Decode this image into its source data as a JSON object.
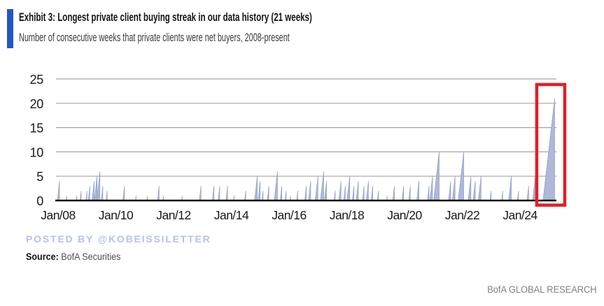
{
  "header": {
    "title": "Exhibit 3: Longest private client buying streak in our data history (21 weeks)",
    "subtitle": "Number of consecutive weeks that private clients were net buyers, 2008-present",
    "accent_color": "#2257c8"
  },
  "watermark": {
    "text": "POSTED BY @KOBEISSILETTER",
    "color": "#b5c1ef"
  },
  "source": {
    "label": "Source:",
    "text": " BofA Securities"
  },
  "footer": {
    "text": "BofA GLOBAL RESEARCH"
  },
  "chart_data": {
    "type": "bar",
    "title": "Longest private client buying streak in our data history (21 weeks)",
    "xlabel": "",
    "ylabel": "",
    "ylim": [
      0,
      25
    ],
    "y_ticks": [
      0,
      5,
      10,
      15,
      20,
      25
    ],
    "x_ticks": [
      "Jan/08",
      "Jan/10",
      "Jan/12",
      "Jan/14",
      "Jan/16",
      "Jan/18",
      "Jan/20",
      "Jan/22",
      "Jan/24"
    ],
    "x_tick_years": [
      2008,
      2010,
      2012,
      2014,
      2016,
      2018,
      2020,
      2022,
      2024
    ],
    "x_range_years": [
      2007.93,
      2025.27
    ],
    "grid": true,
    "legend": "none",
    "bar_color": "#aeb8d8",
    "bar_edge_color": "#8b97c2",
    "grid_color": "#a5a5a5",
    "axis_color": "#111111",
    "tick_label_color": "#1a1a1a",
    "max_streak_weeks": 21,
    "streaks": [
      {
        "year": 2008.05,
        "weeks": 4
      },
      {
        "year": 2008.3,
        "weeks": 1
      },
      {
        "year": 2008.65,
        "weeks": 1
      },
      {
        "year": 2008.8,
        "weeks": 2
      },
      {
        "year": 2009.0,
        "weeks": 2
      },
      {
        "year": 2009.1,
        "weeks": 3
      },
      {
        "year": 2009.25,
        "weeks": 4
      },
      {
        "year": 2009.35,
        "weeks": 5
      },
      {
        "year": 2009.45,
        "weeks": 6
      },
      {
        "year": 2009.55,
        "weeks": 3
      },
      {
        "year": 2009.7,
        "weeks": 2
      },
      {
        "year": 2010.3,
        "weeks": 3
      },
      {
        "year": 2010.7,
        "weeks": 1
      },
      {
        "year": 2011.1,
        "weeks": 1
      },
      {
        "year": 2011.5,
        "weeks": 3
      },
      {
        "year": 2011.65,
        "weeks": 1
      },
      {
        "year": 2012.3,
        "weeks": 1
      },
      {
        "year": 2012.95,
        "weeks": 3
      },
      {
        "year": 2013.4,
        "weeks": 3
      },
      {
        "year": 2013.6,
        "weeks": 3
      },
      {
        "year": 2013.87,
        "weeks": 3
      },
      {
        "year": 2014.1,
        "weeks": 1
      },
      {
        "year": 2014.5,
        "weeks": 2
      },
      {
        "year": 2014.9,
        "weeks": 5
      },
      {
        "year": 2015.0,
        "weeks": 4
      },
      {
        "year": 2015.1,
        "weeks": 2
      },
      {
        "year": 2015.3,
        "weeks": 3
      },
      {
        "year": 2015.6,
        "weeks": 6
      },
      {
        "year": 2015.75,
        "weeks": 3
      },
      {
        "year": 2015.9,
        "weeks": 2
      },
      {
        "year": 2016.05,
        "weeks": 1
      },
      {
        "year": 2016.3,
        "weeks": 2
      },
      {
        "year": 2016.6,
        "weeks": 3
      },
      {
        "year": 2016.75,
        "weeks": 4
      },
      {
        "year": 2017.0,
        "weeks": 5
      },
      {
        "year": 2017.2,
        "weeks": 6
      },
      {
        "year": 2017.3,
        "weeks": 4
      },
      {
        "year": 2017.6,
        "weeks": 2
      },
      {
        "year": 2017.8,
        "weeks": 4
      },
      {
        "year": 2017.95,
        "weeks": 3
      },
      {
        "year": 2018.1,
        "weeks": 5
      },
      {
        "year": 2018.25,
        "weeks": 3
      },
      {
        "year": 2018.4,
        "weeks": 4
      },
      {
        "year": 2018.6,
        "weeks": 3
      },
      {
        "year": 2018.75,
        "weeks": 4
      },
      {
        "year": 2018.9,
        "weeks": 3
      },
      {
        "year": 2019.1,
        "weeks": 2
      },
      {
        "year": 2019.4,
        "weeks": 1
      },
      {
        "year": 2019.65,
        "weeks": 3
      },
      {
        "year": 2019.97,
        "weeks": 3
      },
      {
        "year": 2020.2,
        "weeks": 3
      },
      {
        "year": 2020.5,
        "weeks": 4
      },
      {
        "year": 2020.85,
        "weeks": 3
      },
      {
        "year": 2020.97,
        "weeks": 5
      },
      {
        "year": 2021.2,
        "weeks": 10
      },
      {
        "year": 2021.6,
        "weeks": 4
      },
      {
        "year": 2021.75,
        "weeks": 5
      },
      {
        "year": 2022.05,
        "weeks": 10
      },
      {
        "year": 2022.3,
        "weeks": 5
      },
      {
        "year": 2022.45,
        "weeks": 4
      },
      {
        "year": 2022.65,
        "weeks": 5
      },
      {
        "year": 2023.0,
        "weeks": 2
      },
      {
        "year": 2023.4,
        "weeks": 2
      },
      {
        "year": 2023.7,
        "weeks": 5
      },
      {
        "year": 2023.95,
        "weeks": 2
      },
      {
        "year": 2024.3,
        "weeks": 3
      },
      {
        "year": 2024.55,
        "weeks": 6
      },
      {
        "year": 2025.2,
        "weeks": 21
      }
    ],
    "highlight_box": {
      "color": "#e41e25",
      "year_start": 2024.58,
      "year_end": 2025.55,
      "value_top": 23.85,
      "value_bottom": -0.95
    }
  }
}
